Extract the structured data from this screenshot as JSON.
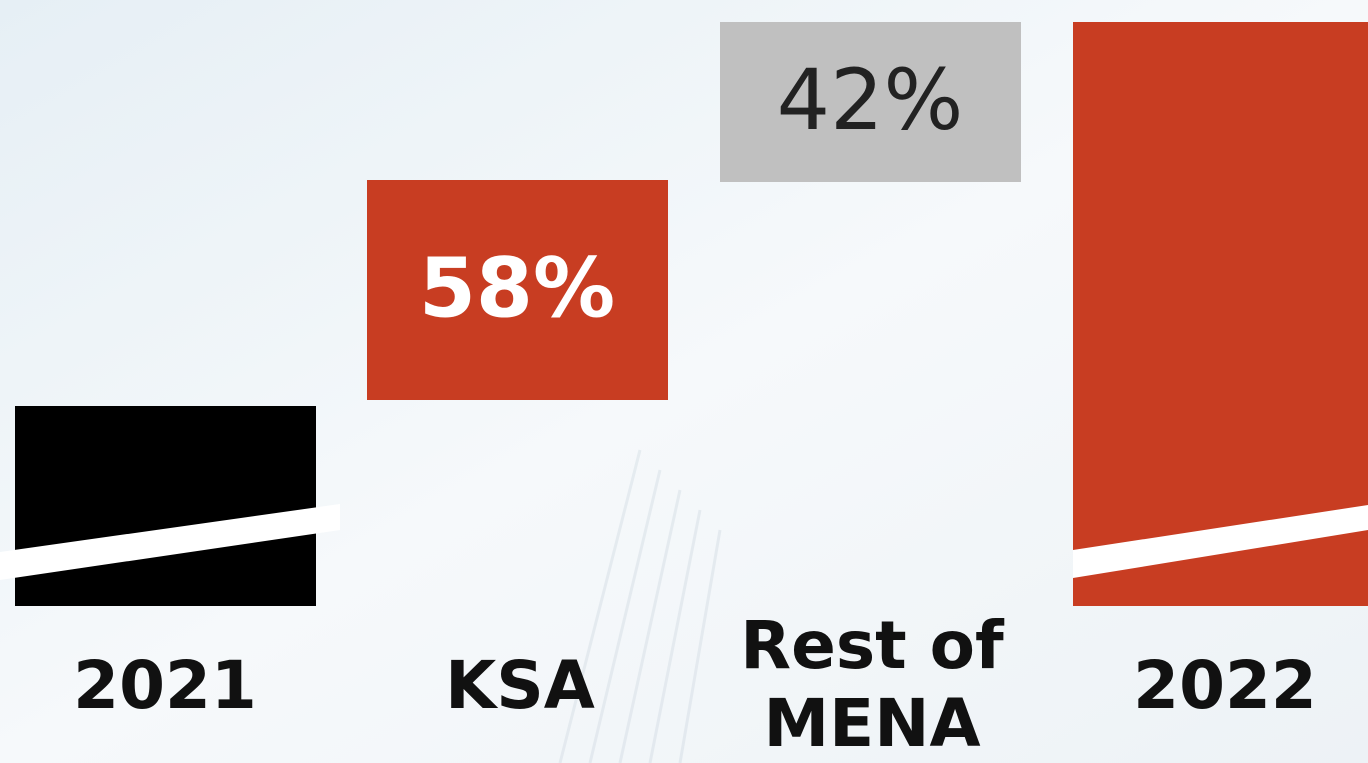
{
  "columns": [
    {
      "label": [
        "2021"
      ]
    },
    {
      "label": [
        "KSA"
      ],
      "value": "58%"
    },
    {
      "label": [
        "Rest of",
        "MENA"
      ],
      "value": "42%"
    },
    {
      "label": [
        "2022"
      ]
    }
  ]
}
